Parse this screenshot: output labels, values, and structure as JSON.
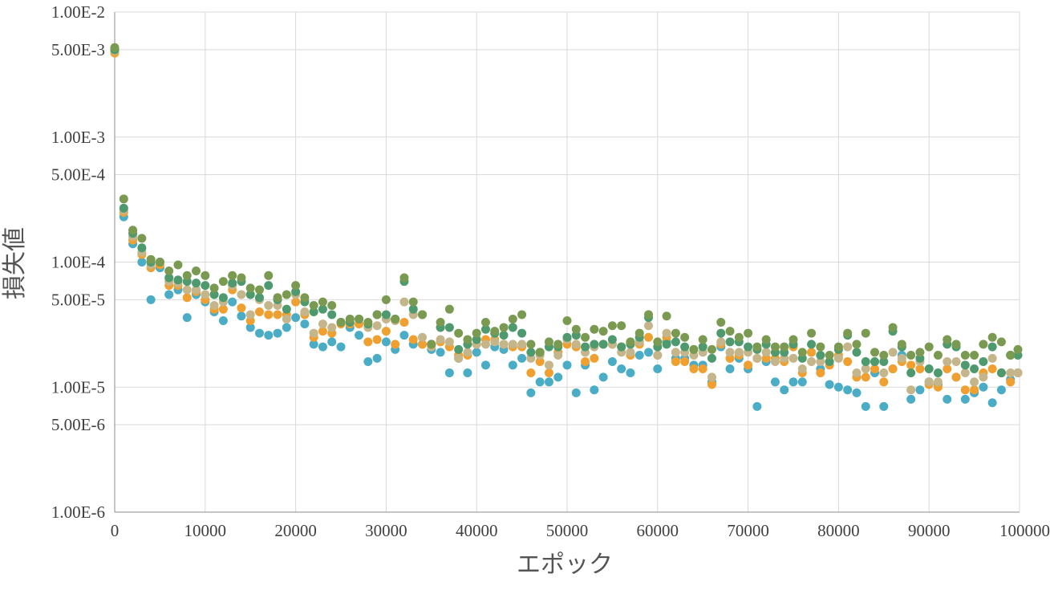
{
  "chart_data": {
    "type": "scatter",
    "title": "",
    "xlabel": "エポック",
    "ylabel": "損失値",
    "xlim": [
      0,
      100000
    ],
    "ylim": [
      1e-06,
      0.01
    ],
    "y_scale": "log",
    "grid": true,
    "legend": "none",
    "x_ticks": [
      0,
      10000,
      20000,
      30000,
      40000,
      50000,
      60000,
      70000,
      80000,
      90000,
      100000
    ],
    "x_tick_labels": [
      "0",
      "10000",
      "20000",
      "30000",
      "40000",
      "50000",
      "60000",
      "70000",
      "80000",
      "90000",
      "100000"
    ],
    "y_ticks": [
      0.01,
      0.005,
      0.001,
      0.0005,
      0.0001,
      5e-05,
      1e-05,
      5e-06,
      1e-06
    ],
    "y_tick_labels": [
      "1.00E-2",
      "5.00E-3",
      "1.00E-3",
      "5.00E-4",
      "1.00E-4",
      "5.00E-5",
      "1.00E-5",
      "5.00E-6",
      "1.00E-6"
    ],
    "x": [
      0,
      1000,
      2000,
      3000,
      4000,
      5000,
      6000,
      7000,
      8000,
      9000,
      10000,
      11000,
      12000,
      13000,
      14000,
      15000,
      16000,
      17000,
      18000,
      19000,
      20000,
      21000,
      22000,
      23000,
      24000,
      25000,
      26000,
      27000,
      28000,
      29000,
      30000,
      31000,
      32000,
      33000,
      34000,
      35000,
      36000,
      37000,
      38000,
      39000,
      40000,
      41000,
      42000,
      43000,
      44000,
      45000,
      46000,
      47000,
      48000,
      49000,
      50000,
      51000,
      52000,
      53000,
      54000,
      55000,
      56000,
      57000,
      58000,
      59000,
      60000,
      61000,
      62000,
      63000,
      64000,
      65000,
      66000,
      67000,
      68000,
      69000,
      70000,
      71000,
      72000,
      73000,
      74000,
      75000,
      76000,
      77000,
      78000,
      79000,
      80000,
      81000,
      82000,
      83000,
      84000,
      85000,
      86000,
      87000,
      88000,
      89000,
      90000,
      91000,
      92000,
      93000,
      94000,
      95000,
      96000,
      97000,
      98000,
      99000,
      100000
    ],
    "series": [
      {
        "color": "#4bacc6",
        "values": [
          0.0048,
          0.00023,
          0.00014,
          0.0001,
          5e-05,
          9e-05,
          5.5e-05,
          6e-05,
          3.6e-05,
          5.5e-05,
          4.8e-05,
          4e-05,
          3.4e-05,
          4.8e-05,
          3.7e-05,
          3e-05,
          2.7e-05,
          2.6e-05,
          2.7e-05,
          3e-05,
          3.6e-05,
          3.2e-05,
          2.2e-05,
          2.1e-05,
          2.3e-05,
          2.1e-05,
          3e-05,
          2.6e-05,
          1.6e-05,
          1.7e-05,
          2.3e-05,
          2e-05,
          2.6e-05,
          2.2e-05,
          2.2e-05,
          2e-05,
          1.9e-05,
          1.3e-05,
          1.7e-05,
          1.3e-05,
          1.9e-05,
          1.5e-05,
          2.1e-05,
          2e-05,
          1.5e-05,
          1.7e-05,
          9e-06,
          1.1e-05,
          1.1e-05,
          1.2e-05,
          1.5e-05,
          9e-06,
          1.5e-05,
          9.5e-06,
          1.2e-05,
          1.6e-05,
          1.4e-05,
          1.3e-05,
          1.8e-05,
          1.9e-05,
          1.4e-05,
          2.3e-05,
          1.7e-05,
          1.7e-05,
          1.5e-05,
          1.5e-05,
          1.1e-05,
          2.1e-05,
          1.4e-05,
          1.7e-05,
          1.4e-05,
          7e-06,
          1.6e-05,
          1.1e-05,
          9.5e-06,
          1.1e-05,
          1.1e-05,
          1.9e-05,
          1.4e-05,
          1.05e-05,
          1e-05,
          9.5e-06,
          9e-06,
          7e-06,
          1.3e-05,
          7e-06,
          1.4e-05,
          1.8e-05,
          8e-06,
          9.5e-06,
          1.1e-05,
          1.05e-05,
          8e-06,
          1.2e-05,
          8e-06,
          9e-06,
          1e-05,
          7.5e-06,
          9.5e-06,
          1.15e-05,
          1.3e-05
        ]
      },
      {
        "color": "#f0a030",
        "values": [
          0.0047,
          0.00025,
          0.00015,
          0.000115,
          9e-05,
          9.5e-05,
          6.5e-05,
          6.5e-05,
          5.2e-05,
          5.8e-05,
          5e-05,
          4.2e-05,
          4.2e-05,
          6e-05,
          4.3e-05,
          3.4e-05,
          4e-05,
          3.8e-05,
          3.8e-05,
          3.8e-05,
          4.8e-05,
          3.8e-05,
          2.5e-05,
          2.8e-05,
          2.7e-05,
          3.2e-05,
          3.2e-05,
          3.2e-05,
          2.3e-05,
          2.4e-05,
          2.8e-05,
          2.2e-05,
          3.3e-05,
          2.4e-05,
          2.2e-05,
          2.2e-05,
          2.3e-05,
          2.1e-05,
          1.8e-05,
          1.8e-05,
          2.2e-05,
          2.4e-05,
          2.4e-05,
          2.2e-05,
          2.1e-05,
          2.1e-05,
          1.3e-05,
          1.6e-05,
          1.3e-05,
          1.9e-05,
          2.2e-05,
          2.1e-05,
          1.6e-05,
          1.7e-05,
          2.2e-05,
          2.2e-05,
          2.1e-05,
          1.8e-05,
          2.2e-05,
          2.5e-05,
          1.8e-05,
          2.5e-05,
          1.6e-05,
          1.6e-05,
          1.4e-05,
          1.4e-05,
          1.05e-05,
          2.2e-05,
          1.7e-05,
          1.8e-05,
          1.5e-05,
          1.7e-05,
          1.7e-05,
          1.7e-05,
          1.6e-05,
          2.1e-05,
          1.3e-05,
          1.9e-05,
          1.3e-05,
          1.5e-05,
          1.8e-05,
          1.6e-05,
          1.2e-05,
          1.2e-05,
          1.4e-05,
          1.1e-05,
          1.4e-05,
          1.6e-05,
          1.5e-05,
          1.4e-05,
          1.05e-05,
          1e-05,
          1.4e-05,
          1.2e-05,
          9.5e-06,
          9.5e-06,
          1.3e-05,
          1.4e-05,
          1.3e-05,
          1.1e-05,
          1.3e-05
        ]
      },
      {
        "color": "#c4b58a",
        "values": [
          0.0049,
          0.00026,
          0.00016,
          0.00012,
          9.5e-05,
          0.0001,
          7e-05,
          6.8e-05,
          6e-05,
          6e-05,
          5.5e-05,
          4.5e-05,
          4.8e-05,
          6.5e-05,
          5.5e-05,
          3.8e-05,
          5e-05,
          4.5e-05,
          4.5e-05,
          3.5e-05,
          5.5e-05,
          4e-05,
          2.7e-05,
          3.2e-05,
          3e-05,
          3.3e-05,
          3.5e-05,
          3.5e-05,
          3e-05,
          3.1e-05,
          3.5e-05,
          3.4e-05,
          4.8e-05,
          3.8e-05,
          2.5e-05,
          2.1e-05,
          2.4e-05,
          2.3e-05,
          1.7e-05,
          1.9e-05,
          2.2e-05,
          2.2e-05,
          2.3e-05,
          2.2e-05,
          2.2e-05,
          2.2e-05,
          1.7e-05,
          1.8e-05,
          1.5e-05,
          1.8e-05,
          2.4e-05,
          2.2e-05,
          1.9e-05,
          2.1e-05,
          2.2e-05,
          2.2e-05,
          1.9e-05,
          1.9e-05,
          2.3e-05,
          3.1e-05,
          1.8e-05,
          2.7e-05,
          1.9e-05,
          1.9e-05,
          1.8e-05,
          1.9e-05,
          1.2e-05,
          2.3e-05,
          1.9e-05,
          1.9e-05,
          1.9e-05,
          1.7e-05,
          1.9e-05,
          1.6e-05,
          1.7e-05,
          1.7e-05,
          1.4e-05,
          1.6e-05,
          1.6e-05,
          1.6e-05,
          1.7e-05,
          2.1e-05,
          1.3e-05,
          1.4e-05,
          1.6e-05,
          1.3e-05,
          1.9e-05,
          1.7e-05,
          9.5e-06,
          1.6e-05,
          1.1e-05,
          1.1e-05,
          1.6e-05,
          1.6e-05,
          1.3e-05,
          1.1e-05,
          1.2e-05,
          1.7e-05,
          1.3e-05,
          1.3e-05,
          1.3e-05
        ]
      },
      {
        "color": "#4e9a6e",
        "values": [
          0.005,
          0.00027,
          0.00017,
          0.00013,
          0.0001,
          0.0001,
          7.5e-05,
          7.2e-05,
          7e-05,
          6.8e-05,
          6.5e-05,
          5.5e-05,
          5.2e-05,
          6.8e-05,
          7e-05,
          5.5e-05,
          5.2e-05,
          6.5e-05,
          5e-05,
          4.2e-05,
          5.8e-05,
          4.8e-05,
          4e-05,
          4.2e-05,
          3.8e-05,
          3.3e-05,
          3.3e-05,
          3.5e-05,
          3.2e-05,
          3.8e-05,
          3.8e-05,
          3.5e-05,
          7e-05,
          4.2e-05,
          3.8e-05,
          2.2e-05,
          3e-05,
          3e-05,
          2e-05,
          2.2e-05,
          2.4e-05,
          2.9e-05,
          2.7e-05,
          2.6e-05,
          3e-05,
          2.7e-05,
          1.9e-05,
          1.9e-05,
          2.1e-05,
          2.1e-05,
          2.5e-05,
          2.6e-05,
          2.1e-05,
          2.2e-05,
          2.2e-05,
          2.4e-05,
          2.1e-05,
          2.2e-05,
          2.5e-05,
          3.6e-05,
          2.1e-05,
          2.2e-05,
          2.3e-05,
          2.1e-05,
          2e-05,
          2.1e-05,
          1.7e-05,
          2.7e-05,
          2.3e-05,
          2.3e-05,
          2.1e-05,
          2e-05,
          2.2e-05,
          1.9e-05,
          1.9e-05,
          2.2e-05,
          1.7e-05,
          2.2e-05,
          1.8e-05,
          1.6e-05,
          2e-05,
          2.6e-05,
          1.9e-05,
          1.6e-05,
          1.6e-05,
          1.6e-05,
          2.8e-05,
          2.1e-05,
          1.3e-05,
          1.7e-05,
          1.4e-05,
          1.3e-05,
          2.2e-05,
          2.1e-05,
          1.5e-05,
          1.4e-05,
          1.6e-05,
          2.1e-05,
          1.3e-05,
          1.8e-05,
          1.8e-05
        ]
      },
      {
        "color": "#7a9a52",
        "values": [
          0.0052,
          0.00032,
          0.00018,
          0.000155,
          0.000105,
          0.0001,
          8.5e-05,
          9.5e-05,
          7.8e-05,
          8.5e-05,
          7.8e-05,
          6.2e-05,
          7e-05,
          7.8e-05,
          7.5e-05,
          6.2e-05,
          6e-05,
          7.8e-05,
          5.2e-05,
          5.5e-05,
          6.5e-05,
          5.2e-05,
          4.5e-05,
          4.8e-05,
          4.5e-05,
          3.3e-05,
          3.5e-05,
          3.5e-05,
          3.3e-05,
          3.8e-05,
          5e-05,
          3.5e-05,
          7.5e-05,
          4.8e-05,
          3.8e-05,
          2.2e-05,
          3.3e-05,
          4.2e-05,
          2.7e-05,
          2.4e-05,
          2.7e-05,
          3.3e-05,
          2.8e-05,
          3e-05,
          3.5e-05,
          3.8e-05,
          2.2e-05,
          1.9e-05,
          2.3e-05,
          2.2e-05,
          3.4e-05,
          2.9e-05,
          2.5e-05,
          2.9e-05,
          2.8e-05,
          3.1e-05,
          3.1e-05,
          2.3e-05,
          2.7e-05,
          3.8e-05,
          2.3e-05,
          3.7e-05,
          2.7e-05,
          2.5e-05,
          2e-05,
          2.4e-05,
          2e-05,
          3.3e-05,
          2.8e-05,
          2.5e-05,
          2.7e-05,
          2.1e-05,
          2.4e-05,
          2.1e-05,
          2.1e-05,
          2.4e-05,
          1.9e-05,
          2.7e-05,
          2.1e-05,
          1.8e-05,
          2.1e-05,
          2.7e-05,
          2.2e-05,
          2.7e-05,
          1.9e-05,
          1.8e-05,
          3e-05,
          2.2e-05,
          1.8e-05,
          1.9e-05,
          2.1e-05,
          1.8e-05,
          2.4e-05,
          2.2e-05,
          1.8e-05,
          1.8e-05,
          2.2e-05,
          2.5e-05,
          2.3e-05,
          1.8e-05,
          2e-05
        ]
      }
    ]
  }
}
